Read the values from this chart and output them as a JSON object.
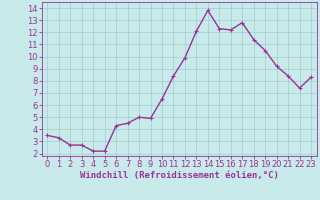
{
  "x": [
    0,
    1,
    2,
    3,
    4,
    5,
    6,
    7,
    8,
    9,
    10,
    11,
    12,
    13,
    14,
    15,
    16,
    17,
    18,
    19,
    20,
    21,
    22,
    23
  ],
  "y": [
    3.5,
    3.3,
    2.7,
    2.7,
    2.2,
    2.2,
    4.3,
    4.5,
    5.0,
    4.9,
    6.5,
    8.4,
    9.9,
    12.1,
    13.8,
    12.3,
    12.2,
    12.8,
    11.4,
    10.5,
    9.2,
    8.4,
    7.4,
    8.3
  ],
  "line_color": "#993399",
  "marker": "+",
  "marker_size": 3,
  "line_width": 1.0,
  "bg_color": "#c8eaea",
  "grid_color": "#a0cccc",
  "xlabel": "Windchill (Refroidissement éolien,°C)",
  "xlabel_fontsize": 6.5,
  "tick_fontsize": 6,
  "xlim": [
    -0.5,
    23.5
  ],
  "ylim": [
    1.8,
    14.5
  ],
  "yticks": [
    2,
    3,
    4,
    5,
    6,
    7,
    8,
    9,
    10,
    11,
    12,
    13,
    14
  ],
  "xticks": [
    0,
    1,
    2,
    3,
    4,
    5,
    6,
    7,
    8,
    9,
    10,
    11,
    12,
    13,
    14,
    15,
    16,
    17,
    18,
    19,
    20,
    21,
    22,
    23
  ]
}
